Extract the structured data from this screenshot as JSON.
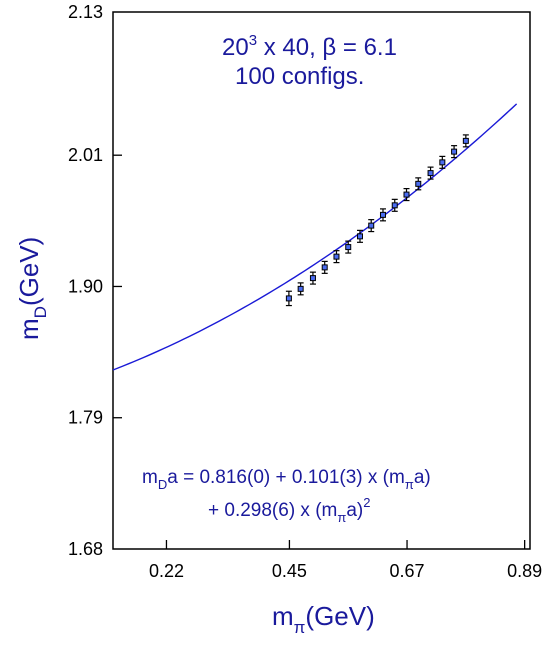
{
  "chart_data": {
    "type": "scatter",
    "xlabel": {
      "main": "m",
      "sub": "π",
      "rest": "(GeV)"
    },
    "ylabel": {
      "main": "m",
      "sub": "D",
      "rest": "(GeV)"
    },
    "xlim": [
      0.12,
      0.9
    ],
    "ylim": [
      1.68,
      2.13
    ],
    "x_ticks": [
      0.22,
      0.45,
      0.67,
      0.89
    ],
    "x_tick_labels": [
      "0.22",
      "0.45",
      "0.67",
      "0.89"
    ],
    "y_ticks": [
      1.68,
      1.79,
      1.9,
      2.01,
      2.13
    ],
    "y_tick_labels": [
      "1.68",
      "1.79",
      "1.90",
      "2.01",
      "2.13"
    ],
    "annotation_top": {
      "line1_a": "20",
      "line1_sup": "3",
      "line1_b": " x 40, β = 6.1",
      "line2": "100 configs."
    },
    "fit_formula": {
      "line1_a": "m",
      "line1_sub": "D",
      "line1_b": "a = 0.816(0) + 0.101(3) x (m",
      "line1_sub2": "π",
      "line1_c": "a)",
      "line2_a": "+ 0.298(6) x (m",
      "line2_sub": "π",
      "line2_b": "a)",
      "line2_sup": "2"
    },
    "series": [
      {
        "kind": "points_with_errors",
        "x": [
          0.449,
          0.471,
          0.494,
          0.516,
          0.538,
          0.56,
          0.582,
          0.603,
          0.625,
          0.647,
          0.669,
          0.691,
          0.714,
          0.736,
          0.758,
          0.78
        ],
        "y": [
          1.89,
          1.898,
          1.907,
          1.916,
          1.925,
          1.933,
          1.942,
          1.951,
          1.96,
          1.968,
          1.977,
          1.986,
          1.995,
          2.004,
          2.013,
          2.022
        ],
        "yerr": [
          0.006,
          0.005,
          0.005,
          0.005,
          0.005,
          0.005,
          0.005,
          0.005,
          0.005,
          0.005,
          0.005,
          0.005,
          0.005,
          0.005,
          0.005,
          0.005
        ]
      },
      {
        "kind": "fit_curve",
        "x_range": [
          0.12,
          0.875
        ],
        "y_start": 1.83,
        "y_end": 2.053
      }
    ],
    "colors": {
      "curve": "#1a1ad6",
      "text": "#1a1a9c",
      "points": "#000000",
      "marker_fill": "#4a6cf0"
    }
  }
}
